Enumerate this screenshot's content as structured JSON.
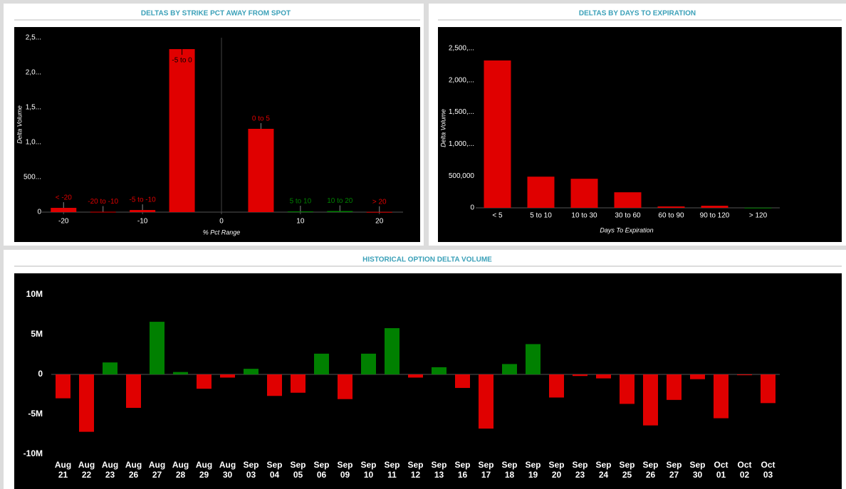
{
  "chart_data": [
    {
      "type": "bar",
      "title": "DELTAS BY STRIKE PCT AWAY FROM SPOT",
      "y_label": "Delta Volume",
      "x_label": "% Pct Range",
      "categories": [
        "< -20",
        "-20 to -10",
        "-5 to -10",
        "-5 to 0",
        "0 to 5",
        "5 to 10",
        "10 to 20",
        "> 20"
      ],
      "x": [
        -20,
        -15,
        -10,
        -5,
        5,
        10,
        15,
        20
      ],
      "values": [
        61000,
        5000,
        30000,
        2337000,
        1194000,
        10000,
        15000,
        3000
      ],
      "colors": [
        "#e00000",
        "#e00000",
        "#e00000",
        "#e00000",
        "#e00000",
        "#008000",
        "#008000",
        "#e00000"
      ],
      "xlim": [
        -23,
        23
      ],
      "xticks": [
        -20,
        -10,
        0,
        10,
        20
      ],
      "ylim": [
        0,
        2500000
      ],
      "yticks": [
        0,
        {
          "value": 500000,
          "label": "500..."
        },
        {
          "value": 1000000,
          "label": "1,0..."
        },
        {
          "value": 1500000,
          "label": "1,5..."
        },
        {
          "value": 2000000,
          "label": "2,0..."
        },
        {
          "value": 2500000,
          "label": "2,5..."
        }
      ]
    },
    {
      "type": "bar",
      "title": "DELTAS BY DAYS TO EXPIRATION",
      "y_label": "Delta Volume",
      "x_label": "Days To Expiration",
      "categories": [
        "< 5",
        "5 to 10",
        "10 to 30",
        "30 to 60",
        "60 to 90",
        "90 to 120",
        "> 120"
      ],
      "values": [
        2311000,
        489000,
        456000,
        244000,
        22000,
        33000,
        2000
      ],
      "colors": [
        "#e00000",
        "#e00000",
        "#e00000",
        "#e00000",
        "#e00000",
        "#e00000",
        "#008000"
      ],
      "ylim": [
        0,
        2500000
      ],
      "yticks": [
        0,
        {
          "value": 500000,
          "label": "500,000"
        },
        {
          "value": 1000000,
          "label": "1,000,..."
        },
        {
          "value": 1500000,
          "label": "1,500,..."
        },
        {
          "value": 2000000,
          "label": "2,000,..."
        },
        {
          "value": 2500000,
          "label": "2,500,..."
        }
      ]
    },
    {
      "type": "bar",
      "title": "HISTORICAL OPTION DELTA VOLUME",
      "categories": [
        "Aug 21",
        "Aug 22",
        "Aug 23",
        "Aug 26",
        "Aug 27",
        "Aug 28",
        "Aug 29",
        "Aug 30",
        "Sep 03",
        "Sep 04",
        "Sep 05",
        "Sep 06",
        "Sep 09",
        "Sep 10",
        "Sep 11",
        "Sep 12",
        "Sep 13",
        "Sep 16",
        "Sep 17",
        "Sep 18",
        "Sep 19",
        "Sep 20",
        "Sep 23",
        "Sep 24",
        "Sep 25",
        "Sep 26",
        "Sep 27",
        "Sep 30",
        "Oct 01",
        "Oct 02",
        "Oct 03"
      ],
      "values": [
        -3000000,
        -7200000,
        1500000,
        -4200000,
        6600000,
        300000,
        -1800000,
        -400000,
        700000,
        -2700000,
        -2300000,
        2600000,
        -3100000,
        2600000,
        5800000,
        -400000,
        900000,
        -1700000,
        -6800000,
        1300000,
        3800000,
        -2900000,
        -200000,
        -500000,
        -3700000,
        -6400000,
        -3200000,
        -600000,
        -5500000,
        -100000,
        -3600000
      ],
      "positive_color": "#008000",
      "negative_color": "#e00000",
      "ylim": [
        -10000000,
        10000000
      ],
      "yticks": [
        {
          "value": -10000000,
          "label": "-10M"
        },
        {
          "value": -5000000,
          "label": "-5M"
        },
        0,
        {
          "value": 5000000,
          "label": "5M"
        },
        {
          "value": 10000000,
          "label": "10M"
        }
      ]
    }
  ]
}
